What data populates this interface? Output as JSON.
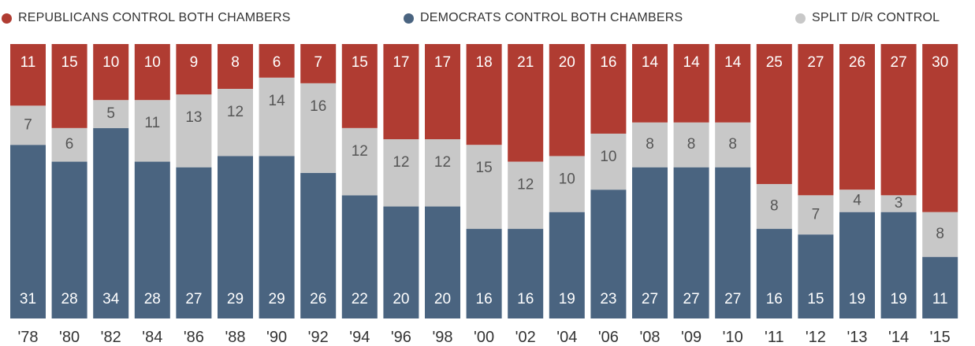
{
  "chart_data": {
    "type": "bar",
    "stacked": true,
    "categories": [
      "'78",
      "'80",
      "'82",
      "'84",
      "'86",
      "'88",
      "'90",
      "'92",
      "'94",
      "'96",
      "'98",
      "'00",
      "'02",
      "'04",
      "'06",
      "'08",
      "'09",
      "'10",
      "'11",
      "'12",
      "'13",
      "'14",
      "'15"
    ],
    "series": [
      {
        "name": "DEMOCRATS CONTROL BOTH CHAMBERS",
        "color": "#4a6480",
        "label_color": "#ffffff",
        "values": [
          31,
          28,
          34,
          28,
          27,
          29,
          29,
          26,
          22,
          20,
          20,
          16,
          16,
          19,
          23,
          27,
          27,
          27,
          16,
          15,
          19,
          19,
          11
        ]
      },
      {
        "name": "SPLIT D/R CONTROL",
        "color": "#c8c8c8",
        "label_color": "#555555",
        "values": [
          7,
          6,
          5,
          11,
          13,
          12,
          14,
          16,
          12,
          12,
          12,
          15,
          12,
          10,
          10,
          8,
          8,
          8,
          8,
          7,
          4,
          3,
          8
        ]
      },
      {
        "name": "REPUBLICANS CONTROL BOTH CHAMBERS",
        "color": "#b03c32",
        "label_color": "#ffffff",
        "values": [
          11,
          15,
          10,
          10,
          9,
          8,
          6,
          7,
          15,
          17,
          17,
          18,
          21,
          20,
          16,
          14,
          14,
          14,
          25,
          27,
          26,
          27,
          30
        ]
      }
    ],
    "legend_order": [
      "REPUBLICANS CONTROL BOTH CHAMBERS",
      "DEMOCRATS CONTROL BOTH CHAMBERS",
      "SPLIT D/R CONTROL"
    ],
    "legend_position": "top",
    "title": "",
    "xlabel": "",
    "ylabel": "",
    "ylim": [
      0,
      49
    ],
    "grid": false
  }
}
